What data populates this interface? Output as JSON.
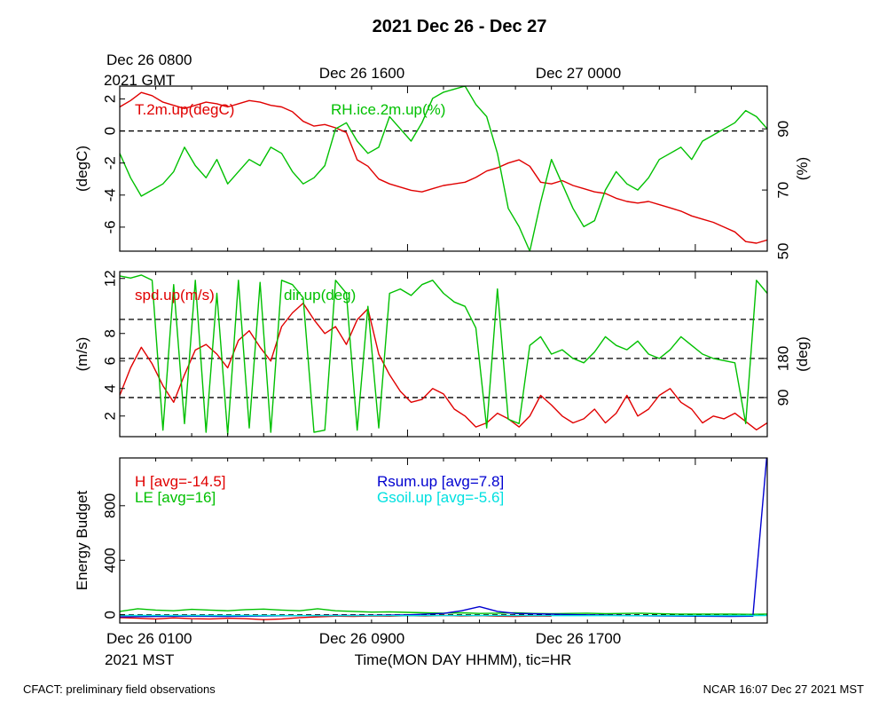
{
  "title": "2021 Dec 26 - Dec 27",
  "top_time_labels": {
    "gmt_first_line": "Dec 26 0800",
    "gmt_second_line": "2021 GMT",
    "gmt_mid": "Dec 26 1600",
    "gmt_right": "Dec 27 0000"
  },
  "bottom_time_labels": {
    "mst_first_line": "Dec 26 0100",
    "mst_second_line": "2021 MST",
    "mst_mid": "Dec 26 0900",
    "mst_right": "Dec 26 1700"
  },
  "xlabel": "Time(MON DAY HHMM), tic=HR",
  "footer_left": "CFACT: preliminary field observations",
  "footer_right": "NCAR 16:07 Dec 27 2021 MST",
  "colors": {
    "red": "#e00000",
    "green": "#00c000",
    "blue": "#0000d0",
    "cyan": "#00e0e0",
    "black": "#000000"
  },
  "chart_data": [
    {
      "type": "line",
      "panel": "temperature-humidity",
      "x_range_hours": [
        0,
        18
      ],
      "left_axis": {
        "label": "(degC)",
        "ylim": [
          -7.5,
          2.8
        ],
        "ticks": [
          "2",
          "0",
          "-2",
          "-4",
          "-6"
        ]
      },
      "right_axis": {
        "label": "(%)",
        "ylim": [
          50,
          104
        ],
        "ticks": [
          "90",
          "70",
          "50"
        ]
      },
      "reference_lines_left": [
        0
      ],
      "series": [
        {
          "name": "T.2m.up(degC)",
          "axis": "left",
          "color": "#e00000",
          "x": [
            0,
            0.3,
            0.6,
            0.9,
            1.2,
            1.5,
            1.8,
            2.1,
            2.4,
            2.7,
            3,
            3.3,
            3.6,
            3.9,
            4.2,
            4.5,
            4.8,
            5.1,
            5.4,
            5.7,
            6,
            6.3,
            6.6,
            6.9,
            7.2,
            7.5,
            7.8,
            8.1,
            8.4,
            8.7,
            9,
            9.3,
            9.6,
            9.9,
            10.2,
            10.5,
            10.8,
            11.1,
            11.4,
            11.7,
            12,
            12.3,
            12.6,
            12.9,
            13.2,
            13.5,
            13.8,
            14.1,
            14.4,
            14.7,
            15,
            15.3,
            15.6,
            15.9,
            16.2,
            16.5,
            16.8,
            17.1,
            17.4,
            17.7,
            18
          ],
          "y": [
            1.5,
            1.9,
            2.4,
            2.2,
            1.8,
            1.6,
            1.4,
            1.6,
            1.8,
            1.7,
            1.5,
            1.7,
            1.9,
            1.8,
            1.6,
            1.5,
            1.2,
            0.6,
            0.3,
            0.4,
            0.2,
            -0.1,
            -1.8,
            -2.2,
            -3.0,
            -3.3,
            -3.5,
            -3.7,
            -3.8,
            -3.6,
            -3.4,
            -3.3,
            -3.2,
            -2.9,
            -2.5,
            -2.3,
            -2.0,
            -1.8,
            -2.2,
            -3.2,
            -3.3,
            -3.1,
            -3.4,
            -3.6,
            -3.8,
            -3.9,
            -4.2,
            -4.4,
            -4.5,
            -4.4,
            -4.6,
            -4.8,
            -5.0,
            -5.3,
            -5.5,
            -5.7,
            -6.0,
            -6.3,
            -6.9,
            -7.0,
            -6.8
          ]
        },
        {
          "name": "RH.ice.2m.up(%)",
          "axis": "right",
          "color": "#00c000",
          "x": [
            0,
            0.3,
            0.6,
            0.9,
            1.2,
            1.5,
            1.8,
            2.1,
            2.4,
            2.7,
            3,
            3.3,
            3.6,
            3.9,
            4.2,
            4.5,
            4.8,
            5.1,
            5.4,
            5.7,
            6,
            6.3,
            6.6,
            6.9,
            7.2,
            7.5,
            7.8,
            8.1,
            8.4,
            8.7,
            9,
            9.3,
            9.6,
            9.9,
            10.2,
            10.5,
            10.8,
            11.1,
            11.4,
            11.7,
            12,
            12.3,
            12.6,
            12.9,
            13.2,
            13.5,
            13.8,
            14.1,
            14.4,
            14.7,
            15,
            15.3,
            15.6,
            15.9,
            16.2,
            16.5,
            16.8,
            17.1,
            17.4,
            17.7,
            18
          ],
          "y": [
            82,
            74,
            68,
            70,
            72,
            76,
            84,
            78,
            74,
            80,
            72,
            76,
            80,
            78,
            84,
            82,
            76,
            72,
            74,
            78,
            90,
            92,
            86,
            82,
            84,
            94,
            90,
            86,
            92,
            100,
            102,
            103,
            104,
            98,
            94,
            82,
            64,
            58,
            50,
            66,
            80,
            72,
            64,
            58,
            60,
            70,
            76,
            72,
            70,
            74,
            80,
            82,
            84,
            80,
            86,
            88,
            90,
            92,
            96,
            94,
            90
          ]
        }
      ]
    },
    {
      "type": "line",
      "panel": "wind",
      "x_range_hours": [
        0,
        18
      ],
      "left_axis": {
        "label": "(m/s)",
        "ylim": [
          0.5,
          12.5
        ],
        "ticks": [
          "12",
          "8",
          "6",
          "4",
          "2"
        ]
      },
      "right_axis": {
        "label": "(deg)",
        "ylim": [
          0,
          380
        ],
        "ticks": [
          "180",
          "90"
        ]
      },
      "reference_lines_right": [
        90,
        180,
        270
      ],
      "series": [
        {
          "name": "spd.up(m/s)",
          "axis": "left",
          "color": "#e00000",
          "x": [
            0,
            0.3,
            0.6,
            0.9,
            1.2,
            1.5,
            1.8,
            2.1,
            2.4,
            2.7,
            3,
            3.3,
            3.6,
            3.9,
            4.2,
            4.5,
            4.8,
            5.1,
            5.4,
            5.7,
            6,
            6.3,
            6.6,
            6.9,
            7.2,
            7.5,
            7.8,
            8.1,
            8.4,
            8.7,
            9,
            9.3,
            9.6,
            9.9,
            10.2,
            10.5,
            10.8,
            11.1,
            11.4,
            11.7,
            12,
            12.3,
            12.6,
            12.9,
            13.2,
            13.5,
            13.8,
            14.1,
            14.4,
            14.7,
            15,
            15.3,
            15.6,
            15.9,
            16.2,
            16.5,
            16.8,
            17.1,
            17.4,
            17.7,
            18
          ],
          "y": [
            3.5,
            5.5,
            7.0,
            5.8,
            4.2,
            3.0,
            5.0,
            6.8,
            7.2,
            6.5,
            5.5,
            7.5,
            8.2,
            7.0,
            6.0,
            8.5,
            9.5,
            10.2,
            9.0,
            8.0,
            8.5,
            7.2,
            9.0,
            9.8,
            6.5,
            5.0,
            3.8,
            3.0,
            3.2,
            4.0,
            3.6,
            2.5,
            2.0,
            1.2,
            1.5,
            2.2,
            1.8,
            1.2,
            2.0,
            3.5,
            2.8,
            2.0,
            1.5,
            1.8,
            2.5,
            1.5,
            2.2,
            3.5,
            2.0,
            2.5,
            3.5,
            4.0,
            3.0,
            2.5,
            1.5,
            2.0,
            1.8,
            2.2,
            1.6,
            1.0,
            1.5
          ]
        },
        {
          "name": "dir.up(deg)",
          "axis": "right",
          "color": "#00c000",
          "x": [
            0,
            0.3,
            0.6,
            0.9,
            1.2,
            1.5,
            1.8,
            2.1,
            2.4,
            2.7,
            3,
            3.3,
            3.6,
            3.9,
            4.2,
            4.5,
            4.8,
            5.1,
            5.4,
            5.7,
            6,
            6.3,
            6.6,
            6.9,
            7.2,
            7.5,
            7.8,
            8.1,
            8.4,
            8.7,
            9,
            9.3,
            9.6,
            9.9,
            10.2,
            10.5,
            10.8,
            11.1,
            11.4,
            11.7,
            12,
            12.3,
            12.6,
            12.9,
            13.2,
            13.5,
            13.8,
            14.1,
            14.4,
            14.7,
            15,
            15.3,
            15.6,
            15.9,
            16.2,
            16.5,
            16.8,
            17.1,
            17.4,
            17.7,
            18
          ],
          "y": [
            370,
            365,
            372,
            360,
            15,
            350,
            30,
            360,
            10,
            330,
            5,
            360,
            20,
            355,
            10,
            360,
            350,
            320,
            10,
            15,
            360,
            330,
            15,
            300,
            20,
            330,
            340,
            325,
            350,
            360,
            330,
            310,
            300,
            250,
            20,
            340,
            40,
            30,
            210,
            230,
            190,
            200,
            180,
            170,
            195,
            230,
            210,
            200,
            220,
            190,
            180,
            200,
            230,
            210,
            190,
            180,
            175,
            170,
            30,
            360,
            330
          ]
        }
      ]
    },
    {
      "type": "line",
      "panel": "energy-budget",
      "x_range_hours": [
        0,
        18
      ],
      "left_axis": {
        "label": "Energy Budget",
        "ylim": [
          -60,
          1150
        ],
        "ticks": [
          "800",
          "400",
          "0"
        ]
      },
      "reference_lines_left": [
        0
      ],
      "series": [
        {
          "name": "H [avg=-14.5]",
          "color": "#e00000",
          "x": [
            0,
            0.5,
            1,
            1.5,
            2,
            2.5,
            3,
            3.5,
            4,
            4.5,
            5,
            5.5,
            6,
            6.5,
            7,
            7.5,
            8,
            8.5,
            9,
            9.5,
            10,
            10.5,
            11,
            11.5,
            12
          ],
          "y": [
            -20,
            -25,
            -30,
            -22,
            -28,
            -30,
            -25,
            -28,
            -35,
            -30,
            -20,
            -15,
            -10,
            -12,
            -8,
            -10,
            -6,
            -8,
            -5,
            -8,
            -6,
            -10,
            -12,
            -8,
            -10
          ]
        },
        {
          "name": "LE [avg=16]",
          "color": "#00c000",
          "x": [
            0,
            0.5,
            1,
            1.5,
            2,
            2.5,
            3,
            3.5,
            4,
            4.5,
            5,
            5.5,
            6,
            6.5,
            7,
            7.5,
            8,
            8.5,
            9,
            9.5,
            10,
            10.5,
            11,
            11.5,
            12,
            12.5,
            13,
            13.5,
            14,
            14.5,
            15,
            15.5,
            16,
            16.5,
            17,
            17.5,
            18
          ],
          "y": [
            25,
            45,
            35,
            30,
            40,
            35,
            30,
            38,
            42,
            35,
            30,
            45,
            30,
            25,
            20,
            22,
            18,
            15,
            12,
            15,
            10,
            12,
            15,
            10,
            8,
            10,
            12,
            8,
            10,
            12,
            8,
            6,
            5,
            6,
            5,
            4,
            5
          ]
        },
        {
          "name": "Rsum.up [avg=7.8]",
          "color": "#0000d0",
          "x": [
            0,
            1,
            2,
            3,
            4,
            5,
            6,
            7,
            8,
            9,
            9.5,
            10,
            10.5,
            11,
            12,
            13,
            14,
            15,
            16,
            17,
            17.6,
            18
          ],
          "y": [
            -15,
            -12,
            -10,
            -12,
            -8,
            -6,
            -5,
            -4,
            0,
            10,
            30,
            60,
            25,
            10,
            5,
            0,
            -5,
            -8,
            -10,
            -12,
            -10,
            1200
          ]
        },
        {
          "name": "Gsoil.up [avg=-5.6]",
          "color": "#00e0e0",
          "x": [
            0,
            2,
            4,
            6,
            8,
            10,
            12,
            14,
            16,
            18
          ],
          "y": [
            -4,
            -5,
            -5,
            -6,
            -6,
            -5,
            -6,
            -6,
            -6,
            -5
          ]
        }
      ]
    }
  ]
}
